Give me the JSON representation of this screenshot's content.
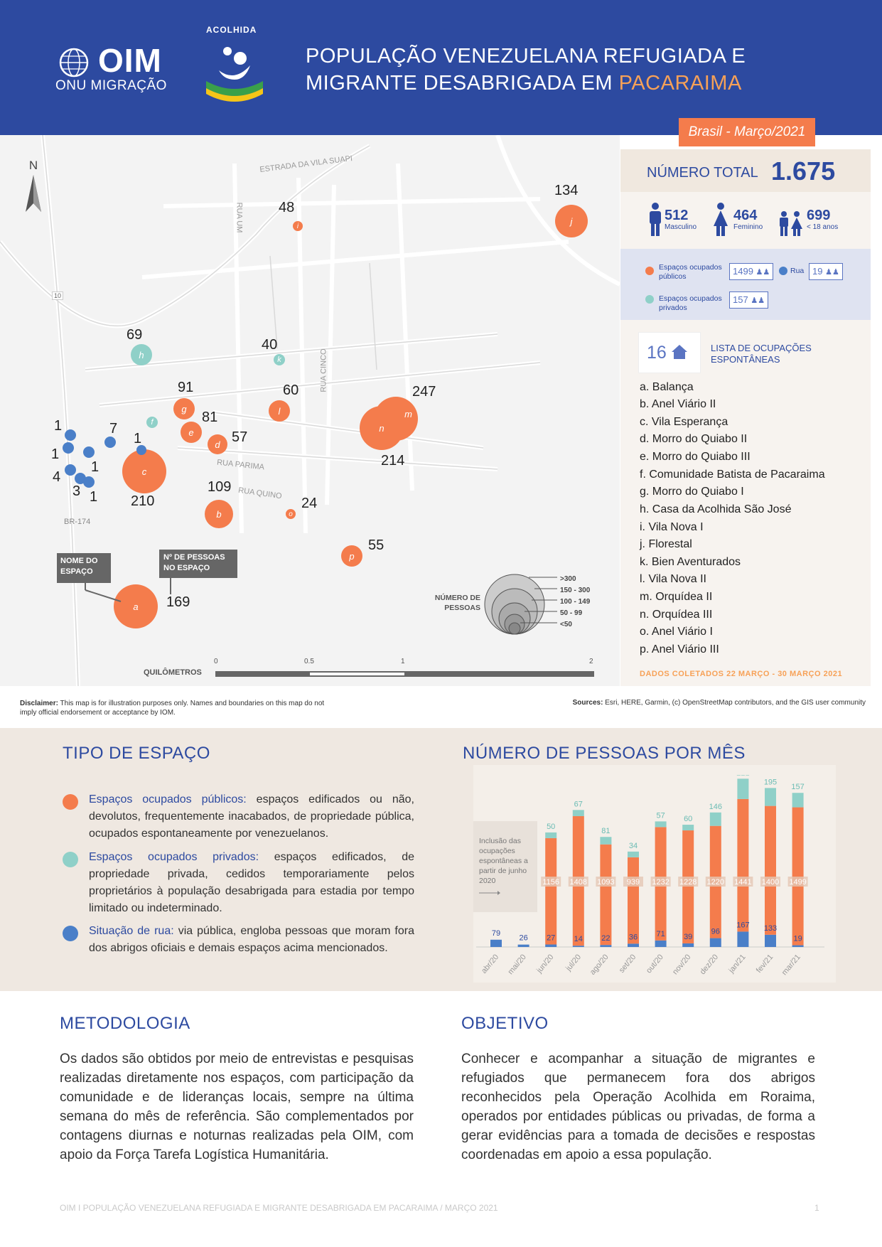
{
  "header": {
    "oim": "OIM",
    "oim_sub": "ONU MIGRAÇÃO",
    "acolhida": "ACOLHIDA",
    "title_line1": "POPULAÇÃO VENEZUELANA REFUGIADA E",
    "title_line2_a": "MIGRANTE DESABRIGADA EM ",
    "title_line2_b": "PACARAIMA"
  },
  "date_badge": "Brasil - Março/2021",
  "colors": {
    "brand_blue": "#2d4aa0",
    "orange": "#f47c4c",
    "teal": "#8fd0c8",
    "street_blue": "#4a7fc8"
  },
  "map": {
    "north": "N",
    "streets": [
      "ESTRADA DA VILA SUAPI",
      "RUA UM",
      "RUA CINCO",
      "RUA PARIMA",
      "RUA QUINO",
      "BR-174",
      "10"
    ],
    "sites": [
      {
        "letter": "a",
        "count": "169",
        "type": "public"
      },
      {
        "letter": "b",
        "count": "109",
        "type": "public"
      },
      {
        "letter": "c",
        "count": "210",
        "type": "public"
      },
      {
        "letter": "d",
        "count": "57",
        "type": "public"
      },
      {
        "letter": "e",
        "count": "81",
        "type": "public"
      },
      {
        "letter": "f",
        "count": "",
        "type": "private"
      },
      {
        "letter": "g",
        "count": "91",
        "type": "public"
      },
      {
        "letter": "h",
        "count": "69",
        "type": "private"
      },
      {
        "letter": "i",
        "count": "48",
        "type": "public"
      },
      {
        "letter": "j",
        "count": "134",
        "type": "public"
      },
      {
        "letter": "k",
        "count": "40",
        "type": "private"
      },
      {
        "letter": "l",
        "count": "60",
        "type": "public"
      },
      {
        "letter": "m",
        "count": "247",
        "type": "public"
      },
      {
        "letter": "n",
        "count": "214",
        "type": "public"
      },
      {
        "letter": "o",
        "count": "24",
        "type": "public"
      },
      {
        "letter": "p",
        "count": "55",
        "type": "public"
      }
    ],
    "street_counts": [
      "1",
      "1",
      "4",
      "3",
      "1",
      "1",
      "7",
      "1"
    ],
    "callout_name": "NOME DO ESPAÇO",
    "callout_count": "Nº DE PESSOAS NO ESPAÇO",
    "size_legend_title": "NÚMERO DE PESSOAS",
    "size_legend": [
      ">300",
      "150 - 300",
      "100 - 149",
      "50 - 99",
      "<50"
    ],
    "scale_label": "QUILÔMETROS",
    "scale_ticks": [
      "0",
      "0.5",
      "1",
      "2"
    ]
  },
  "totals": {
    "label": "NÚMERO TOTAL",
    "value": "1.675",
    "male": "512",
    "male_label": "Masculino",
    "female": "464",
    "female_label": "Feminino",
    "minors": "699",
    "minors_label": "< 18 anos"
  },
  "legend": {
    "public_label": "Espaços ocupados públicos",
    "public_count": "1499",
    "street_label": "Rua",
    "street_count": "19",
    "private_label": "Espaços ocupados privados",
    "private_count": "157"
  },
  "occupations": {
    "count": "16",
    "title": "LISTA DE OCUPAÇÕES ESPONTÂNEAS",
    "items": [
      "a. Balança",
      "b. Anel Viário II",
      "c. Vila Esperança",
      "d. Morro do Quiabo II",
      "e. Morro do Quiabo III",
      "f. Comunidade Batista de Pacaraima",
      "g. Morro do Quiabo I",
      "h. Casa da Acolhida São José",
      "i. Vila Nova I",
      "j. Florestal",
      "k. Bien Aventurados",
      "l. Vila Nova II",
      "m. Orquídea II",
      "n. Orquídea III",
      "o. Anel Viário I",
      "p. Anel Viário III"
    ],
    "dates": "DADOS COLETADOS 22 MARÇO - 30 MARÇO 2021"
  },
  "disclaimer_label": "Disclaimer:",
  "disclaimer": "This map is for illustration purposes only. Names and boundaries on this map do not imply official endorsement or acceptance by IOM.",
  "sources_label": "Sources:",
  "sources": "Esri, HERE, Garmin, (c) OpenStreetMap contributors, and the GIS user community",
  "tipo": {
    "title": "TIPO DE ESPAÇO",
    "public_key": "Espaços ocupados públicos:",
    "public_text": " espaços edificados ou não, devolutos, frequentemente inacabados, de propriedade pública, ocupados espontaneamente por venezuelanos.",
    "private_key": "Espaços ocupados privados:",
    "private_text": " espaços edificados, de propriedade privada, cedidos temporariamente pelos proprietários à população desabrigada para estadia por tempo limitado ou indeterminado.",
    "street_key": "Situação de rua:",
    "street_text": " via pública, engloba pessoas que moram fora dos abrigos oficiais e demais espaços acima mencionados."
  },
  "chart_title": "NÚMERO DE PESSOAS POR MÊS",
  "chart_note": "Inclusão das ocupações espontâneas a partir de junho 2020",
  "chart_data": {
    "type": "bar",
    "stacked": true,
    "categories": [
      "abr/20",
      "mai/20",
      "jun/20",
      "jul/20",
      "ago/20",
      "set/20",
      "out/20",
      "nov/20",
      "dez/20",
      "jan/21",
      "fev/21",
      "mar/21"
    ],
    "series": [
      {
        "name": "Rua",
        "color": "#4a7fc8",
        "values": [
          79,
          26,
          27,
          14,
          22,
          36,
          71,
          39,
          96,
          167,
          133,
          19
        ]
      },
      {
        "name": "Espaços ocupados públicos",
        "color": "#f47c4c",
        "values": [
          null,
          null,
          1156,
          1408,
          1093,
          939,
          1232,
          1228,
          1220,
          1441,
          1400,
          1499
        ]
      },
      {
        "name": "Espaços ocupados privados",
        "color": "#8fd0c8",
        "values": [
          null,
          null,
          50,
          67,
          81,
          34,
          57,
          60,
          146,
          221,
          195,
          157
        ]
      }
    ]
  },
  "metodologia": {
    "title": "METODOLOGIA",
    "text": "Os dados são obtidos por meio de entrevistas e pesquisas realizadas diretamente nos espaços, com participação da comunidade e de lideranças locais, sempre na última semana do mês de referência. São complementados por contagens diurnas e noturnas realizadas pela OIM, com apoio da Força Tarefa Logística Humanitária."
  },
  "objetivo": {
    "title": "OBJETIVO",
    "text": "Conhecer e acompanhar a situação de migrantes e refugiados que permanecem fora dos abrigos reconhecidos pela Operação Acolhida em Roraima, operados por entidades públicas ou privadas, de forma a gerar evidências para a tomada de decisões e respostas coordenadas em apoio a essa população."
  },
  "footer": "OIM I POPULAÇÃO VENEZUELANA REFUGIADA E MIGRANTE DESABRIGADA EM PACARAIMA / MARÇO 2021",
  "page": "1"
}
